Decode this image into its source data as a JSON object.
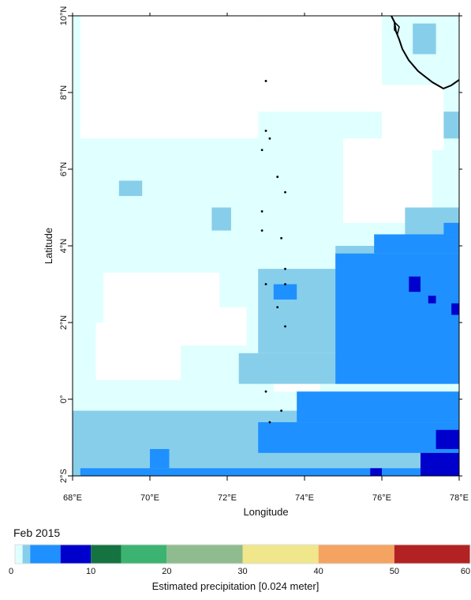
{
  "map": {
    "x_axis_title": "Longitude",
    "y_axis_title": "Latitude",
    "lon_ticks": [
      "68°E",
      "70°E",
      "72°E",
      "74°E",
      "76°E",
      "78°E"
    ],
    "lat_ticks": [
      "10°N",
      "8°N",
      "6°N",
      "4°N",
      "2°N",
      "0°",
      "2°S"
    ],
    "lon_range": [
      68,
      78
    ],
    "lat_range": [
      -2,
      10
    ],
    "grid_resolution_deg": 0.25,
    "colors": {
      "c0": "#ffffff",
      "c1": "#e0ffff",
      "c2": "#87ceeb",
      "c3": "#1e90ff",
      "c4": "#0000cd",
      "coast": "#000000"
    },
    "cell_layers_note": "cells listed in lon/lat degrees"
  },
  "period": "Feb 2015",
  "colorbar": {
    "title": "Estimated precipitation [0.024 meter]",
    "tick_labels": [
      "0",
      "10",
      "20",
      "30",
      "40",
      "50",
      "60"
    ],
    "range": [
      0,
      60
    ],
    "bins": [
      {
        "from": 0,
        "to": 1,
        "color": "#e0ffff"
      },
      {
        "from": 1,
        "to": 2,
        "color": "#87ceeb"
      },
      {
        "from": 2,
        "to": 6,
        "color": "#1e90ff"
      },
      {
        "from": 6,
        "to": 10,
        "color": "#0000cd"
      },
      {
        "from": 10,
        "to": 14,
        "color": "#147340"
      },
      {
        "from": 14,
        "to": 20,
        "color": "#3cb371"
      },
      {
        "from": 20,
        "to": 30,
        "color": "#8fbc8f"
      },
      {
        "from": 30,
        "to": 40,
        "color": "#f0e68c"
      },
      {
        "from": 40,
        "to": 50,
        "color": "#f4a460"
      },
      {
        "from": 50,
        "to": 60,
        "color": "#b22222"
      }
    ]
  }
}
